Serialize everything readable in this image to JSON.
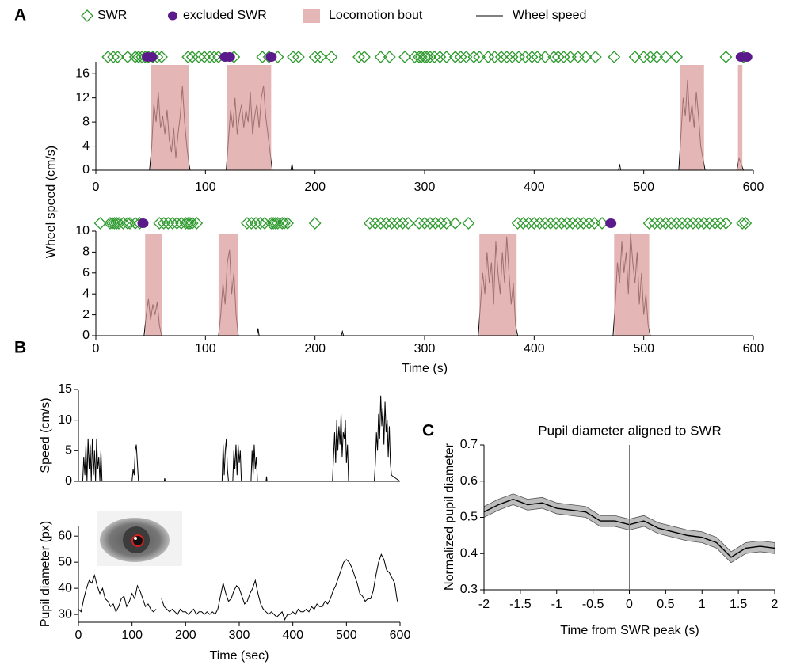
{
  "chart_data": [
    {
      "type": "line",
      "panel": "A",
      "ylabel": "Wheel speed (cm/s)",
      "xlim": [
        0,
        600
      ],
      "xticks": [
        0,
        100,
        200,
        300,
        400,
        500,
        600
      ],
      "ylim": [
        0,
        18
      ],
      "yticks": [
        0,
        4,
        8,
        12,
        16
      ],
      "series": [
        {
          "name": "SWR",
          "color": "#2e9a2e",
          "marker": "diamond",
          "x": [
            11,
            16,
            20,
            29,
            36,
            39,
            42,
            45,
            48,
            52,
            56,
            60,
            84,
            88,
            94,
            99,
            104,
            108,
            112,
            126,
            152,
            158,
            166,
            180,
            185,
            200,
            205,
            215,
            240,
            245,
            260,
            268,
            282,
            291,
            295,
            297,
            300,
            302,
            305,
            309,
            314,
            320,
            328,
            333,
            338,
            345,
            350,
            358,
            364,
            370,
            375,
            380,
            386,
            392,
            398,
            403,
            410,
            418,
            422,
            427,
            433,
            440,
            447,
            456,
            473,
            492,
            500,
            506,
            512,
            520,
            530,
            575,
            591
          ]
        },
        {
          "name": "excluded SWR",
          "color": "#5b1a8c",
          "marker": "ellipse",
          "x": [
            47,
            51,
            118,
            122,
            160,
            589,
            594
          ]
        },
        {
          "name": "Locomotion bout",
          "color": "#d99a9a",
          "intervals": [
            [
              50,
              85
            ],
            [
              120,
              160
            ],
            [
              533,
              555
            ],
            [
              586,
              590
            ]
          ]
        },
        {
          "name": "Wheel speed",
          "color": "#000000",
          "x": [
            0,
            49,
            51,
            53,
            55,
            57,
            59,
            61,
            63,
            65,
            67,
            69,
            71,
            73,
            75,
            77,
            79,
            81,
            83,
            85,
            86,
            119,
            121,
            123,
            125,
            127,
            129,
            131,
            133,
            135,
            137,
            139,
            141,
            143,
            145,
            147,
            149,
            151,
            153,
            155,
            157,
            159,
            161,
            178,
            179,
            180,
            477,
            478,
            479,
            532,
            534,
            536,
            538,
            540,
            542,
            544,
            546,
            548,
            550,
            552,
            554,
            556,
            585,
            587,
            589,
            591,
            600
          ],
          "values": [
            0,
            0,
            4,
            11,
            8,
            13,
            7,
            9,
            6,
            10,
            5,
            3,
            7,
            2,
            6,
            9,
            14,
            8,
            4,
            1,
            0,
            0,
            5,
            10,
            7,
            12,
            6,
            9,
            11,
            7,
            10,
            8,
            13,
            6,
            9,
            11,
            7,
            12,
            14,
            9,
            6,
            3,
            0,
            0,
            1,
            0,
            0,
            1,
            0,
            0,
            6,
            12,
            9,
            15,
            8,
            11,
            7,
            13,
            9,
            4,
            2,
            0,
            0,
            2,
            1,
            0,
            0
          ]
        }
      ]
    },
    {
      "type": "line",
      "xlabel": "Time (s)",
      "xlim": [
        0,
        600
      ],
      "xticks": [
        0,
        100,
        200,
        300,
        400,
        500,
        600
      ],
      "ylim": [
        0,
        10
      ],
      "yticks": [
        0,
        2,
        4,
        6,
        8,
        10
      ],
      "series": [
        {
          "color": "#2e9a2e",
          "marker": "diamond",
          "x": [
            4,
            13,
            15,
            17,
            19,
            21,
            25,
            29,
            31,
            36,
            40,
            58,
            62,
            66,
            70,
            74,
            78,
            82,
            84,
            86,
            88,
            92,
            138,
            142,
            146,
            150,
            154,
            160,
            162,
            164,
            166,
            170,
            172,
            175,
            200,
            250,
            255,
            260,
            265,
            270,
            275,
            280,
            285,
            295,
            300,
            305,
            310,
            315,
            320,
            328,
            340,
            385,
            390,
            395,
            400,
            405,
            410,
            415,
            420,
            425,
            430,
            435,
            440,
            445,
            450,
            455,
            462,
            505,
            510,
            515,
            520,
            525,
            530,
            535,
            540,
            545,
            550,
            555,
            560,
            565,
            570,
            575,
            590,
            593
          ]
        },
        {
          "color": "#5b1a8c",
          "marker": "ellipse",
          "x": [
            43,
            470
          ]
        },
        {
          "color": "#d99a9a",
          "intervals": [
            [
              45,
              60
            ],
            [
              112,
              130
            ],
            [
              350,
              384
            ],
            [
              473,
              505
            ]
          ]
        },
        {
          "color": "#000000",
          "x": [
            0,
            44,
            46,
            48,
            50,
            52,
            54,
            56,
            58,
            60,
            112,
            114,
            116,
            118,
            120,
            122,
            124,
            126,
            128,
            130,
            147,
            148,
            149,
            224,
            225,
            226,
            349,
            351,
            353,
            355,
            357,
            359,
            361,
            363,
            365,
            367,
            369,
            371,
            373,
            375,
            377,
            379,
            381,
            383,
            385,
            472,
            474,
            476,
            478,
            480,
            482,
            484,
            486,
            488,
            490,
            492,
            494,
            496,
            498,
            500,
            502,
            504,
            506,
            600
          ],
          "values": [
            0,
            0,
            2,
            3.5,
            1.5,
            3,
            2,
            3.2,
            1,
            0,
            0,
            2,
            5,
            3,
            7,
            8.2,
            4,
            6,
            2,
            0,
            0,
            0.7,
            0,
            0,
            0.4,
            0,
            0,
            3,
            6,
            4,
            8,
            5,
            7,
            3,
            9,
            6,
            4,
            8,
            5,
            9.5,
            6,
            3,
            5,
            1,
            0,
            0,
            3,
            7,
            5,
            9,
            6,
            8,
            4,
            9.8,
            7,
            5,
            8,
            3,
            6,
            2,
            4,
            1,
            0,
            0
          ]
        }
      ]
    },
    {
      "type": "line",
      "panel": "B",
      "ylabel": "Speed (cm/s)",
      "xlim": [
        0,
        600
      ],
      "ylim": [
        0,
        15
      ],
      "yticks": [
        0,
        5,
        10,
        15
      ],
      "series": [
        {
          "color": "#000000",
          "x": [
            0,
            8,
            10,
            12,
            14,
            16,
            18,
            20,
            22,
            24,
            26,
            28,
            30,
            32,
            34,
            36,
            38,
            40,
            42,
            44,
            46,
            100,
            102,
            104,
            106,
            108,
            110,
            112,
            160,
            161,
            162,
            268,
            270,
            272,
            274,
            276,
            278,
            280,
            288,
            290,
            292,
            294,
            296,
            298,
            300,
            302,
            304,
            322,
            324,
            326,
            328,
            330,
            332,
            334,
            350,
            351,
            352,
            474,
            476,
            478,
            480,
            482,
            484,
            486,
            488,
            490,
            492,
            494,
            496,
            498,
            500,
            502,
            504,
            552,
            554,
            556,
            558,
            560,
            562,
            564,
            566,
            568,
            570,
            572,
            574,
            576,
            578,
            580,
            582,
            584,
            600
          ],
          "values": [
            0,
            0,
            4,
            1,
            6,
            0,
            7,
            2,
            6,
            0,
            7,
            1,
            5,
            0,
            7,
            2,
            4,
            0,
            5,
            0,
            0,
            0,
            2,
            1,
            5,
            6,
            3,
            0,
            0,
            0.5,
            0,
            0,
            6,
            1,
            5,
            7,
            2,
            0,
            0,
            5,
            2,
            6,
            1,
            6,
            3,
            5,
            0,
            0,
            5,
            1,
            6,
            2,
            4,
            0,
            0,
            0.8,
            0,
            0,
            4,
            8,
            3,
            10,
            5,
            9,
            6,
            11,
            4,
            8,
            7,
            10,
            3,
            6,
            0,
            0,
            3,
            8,
            5,
            11,
            7,
            14,
            9,
            12,
            6,
            13,
            8,
            10,
            4,
            9,
            3,
            1,
            0
          ]
        }
      ]
    },
    {
      "type": "line",
      "ylabel": "Pupil diameter (px)",
      "xlabel": "Time (sec)",
      "xlim": [
        0,
        600
      ],
      "xticks": [
        0,
        100,
        200,
        300,
        400,
        500,
        600
      ],
      "ylim": [
        27,
        64
      ],
      "yticks": [
        30,
        40,
        50,
        60
      ],
      "series": [
        {
          "color": "#000000",
          "x": [
            0,
            5,
            10,
            15,
            20,
            25,
            30,
            35,
            40,
            45,
            50,
            55,
            60,
            65,
            70,
            75,
            80,
            85,
            90,
            95,
            100,
            105,
            110,
            115,
            120,
            125,
            130,
            135,
            140,
            145,
            150,
            155,
            160,
            165,
            170,
            175,
            180,
            185,
            190,
            195,
            200,
            205,
            210,
            215,
            220,
            225,
            230,
            235,
            240,
            245,
            250,
            255,
            260,
            265,
            270,
            275,
            280,
            285,
            290,
            295,
            300,
            305,
            310,
            315,
            320,
            325,
            330,
            335,
            340,
            345,
            350,
            355,
            360,
            365,
            370,
            375,
            380,
            385,
            390,
            395,
            400,
            405,
            410,
            415,
            420,
            425,
            430,
            435,
            440,
            445,
            450,
            455,
            460,
            465,
            470,
            475,
            480,
            485,
            490,
            495,
            500,
            505,
            510,
            515,
            520,
            525,
            530,
            535,
            540,
            545,
            550,
            555,
            560,
            565,
            570,
            575,
            580,
            585,
            590,
            595
          ],
          "values": [
            32,
            31,
            36,
            40,
            43,
            42,
            45,
            41,
            38,
            40,
            36,
            35,
            33,
            34,
            31,
            33,
            36,
            37,
            33,
            35,
            38,
            36,
            41,
            39,
            36,
            33,
            34,
            32,
            31,
            32,
            null,
            36,
            33,
            32,
            31,
            32,
            31,
            30,
            32,
            31,
            31,
            30,
            31,
            32,
            30,
            31,
            31,
            30,
            31,
            30,
            31,
            30,
            32,
            37,
            42,
            38,
            35,
            36,
            39,
            41,
            40,
            37,
            34,
            35,
            38,
            40,
            43,
            38,
            34,
            32,
            31,
            30,
            31,
            30,
            29,
            30,
            31,
            28,
            30,
            30,
            31,
            30,
            32,
            31,
            31,
            32,
            31,
            33,
            32,
            34,
            33,
            33,
            35,
            34,
            36,
            39,
            41,
            44,
            47,
            50,
            51,
            50,
            48,
            45,
            42,
            38,
            37,
            35,
            36,
            36,
            39,
            45,
            50,
            53,
            51,
            47,
            46,
            44,
            42,
            35
          ]
        }
      ]
    },
    {
      "type": "line",
      "panel": "C",
      "title": "Pupil diameter aligned to SWR",
      "xlabel": "Time from SWR peak (s)",
      "ylabel": "Normalized pupil diameter",
      "xlim": [
        -2,
        2
      ],
      "xticks": [
        -2,
        -1.5,
        -1,
        -0.5,
        0,
        0.5,
        1,
        1.5,
        2
      ],
      "ylim": [
        0.3,
        0.7
      ],
      "yticks": [
        0.3,
        0.4,
        0.5,
        0.6,
        0.7
      ],
      "vline": 0,
      "series": [
        {
          "color": "#000000",
          "band_color": "#bdbdbd",
          "x": [
            -2,
            -1.8,
            -1.6,
            -1.4,
            -1.2,
            -1,
            -0.8,
            -0.6,
            -0.4,
            -0.2,
            0,
            0.2,
            0.4,
            0.6,
            0.8,
            1,
            1.2,
            1.4,
            1.6,
            1.8,
            2
          ],
          "values": [
            0.515,
            0.535,
            0.55,
            0.535,
            0.54,
            0.525,
            0.52,
            0.515,
            0.49,
            0.49,
            0.48,
            0.49,
            0.47,
            0.46,
            0.45,
            0.445,
            0.43,
            0.39,
            0.415,
            0.42,
            0.415
          ],
          "error": [
            0.015,
            0.015,
            0.015,
            0.015,
            0.015,
            0.015,
            0.015,
            0.015,
            0.015,
            0.015,
            0.015,
            0.015,
            0.015,
            0.015,
            0.015,
            0.015,
            0.015,
            0.015,
            0.015,
            0.015,
            0.015
          ]
        }
      ]
    }
  ]
}
